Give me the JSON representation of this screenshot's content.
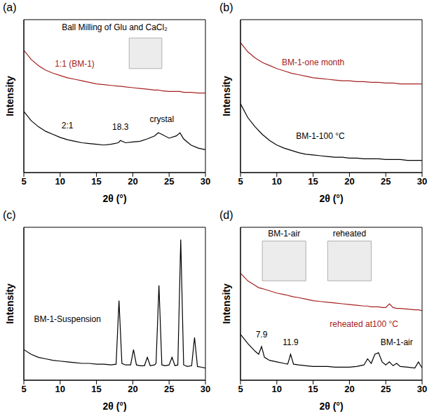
{
  "chart_data": [
    {
      "type": "line",
      "title": "(a)",
      "x_label": "2θ (°)",
      "y_label": "Intensity",
      "xlim": [
        5,
        30
      ],
      "xticks": [
        5,
        10,
        15,
        20,
        25,
        30
      ],
      "ylim": [
        0,
        100
      ],
      "tick_labels": "x",
      "x": [
        5,
        6,
        7,
        8,
        9,
        10,
        11,
        12,
        13,
        14,
        15,
        16,
        17,
        18,
        18.3,
        19,
        20,
        21,
        22,
        23,
        23.5,
        24,
        25,
        26,
        26.5,
        27,
        28,
        29,
        30
      ],
      "series": [
        {
          "name": "1:1 (BM-1)",
          "color": "#a52020",
          "label_pos": [
            12,
            71
          ],
          "values": [
            80,
            74,
            70,
            67,
            65,
            63.5,
            62,
            61,
            60,
            59,
            58,
            57.5,
            57,
            56.5,
            56.5,
            56,
            55.5,
            55,
            54.5,
            54,
            54,
            53.5,
            53,
            53,
            53,
            52.5,
            52.5,
            52,
            52
          ]
        },
        {
          "name": "2:1",
          "color": "#000000",
          "label_pos": [
            11,
            31
          ],
          "values": [
            40,
            34,
            30,
            27,
            25,
            23,
            21.5,
            20.5,
            19.5,
            19,
            18.5,
            18,
            18.5,
            19.5,
            21,
            19.5,
            20,
            20.5,
            22,
            24,
            26,
            25,
            22.5,
            24,
            26,
            22,
            18,
            16,
            15
          ]
        }
      ],
      "annotations": [
        {
          "text": "Ball Milling of Glu and CaCl₂",
          "x": 17.5,
          "y": 95
        },
        {
          "text": "18.3",
          "x": 18.3,
          "y": 30
        },
        {
          "text": "crystal",
          "x": 24,
          "y": 35
        }
      ]
    },
    {
      "type": "line",
      "title": "(b)",
      "x_label": "2θ (°)",
      "y_label": "Intensity",
      "xlim": [
        5,
        30
      ],
      "xticks": [
        5,
        10,
        15,
        20,
        25,
        30
      ],
      "ylim": [
        0,
        100
      ],
      "tick_labels": "x",
      "x": [
        5,
        6,
        7,
        8,
        9,
        10,
        11,
        12,
        13,
        14,
        15,
        16,
        17,
        18,
        19,
        20,
        21,
        22,
        23,
        24,
        25,
        26,
        27,
        28,
        29,
        30
      ],
      "series": [
        {
          "name": "BM-1-one month",
          "color": "#a52020",
          "label_pos": [
            15,
            72
          ],
          "values": [
            85,
            79,
            75,
            72,
            70,
            68,
            66.5,
            65,
            64,
            63,
            62,
            61.5,
            61,
            60.5,
            60,
            60,
            59.5,
            59.5,
            59,
            59,
            58.5,
            58.5,
            58,
            58,
            58,
            58
          ]
        },
        {
          "name": "BM-1-100 °C",
          "color": "#000000",
          "label_pos": [
            16,
            24
          ],
          "values": [
            45,
            36,
            30,
            25,
            21,
            18,
            16,
            14.5,
            13,
            12,
            11.5,
            11,
            10.5,
            10,
            10,
            9.5,
            9.5,
            9,
            9,
            9,
            8.5,
            8.5,
            8.5,
            8,
            8,
            8
          ]
        }
      ],
      "annotations": []
    },
    {
      "type": "line",
      "title": "(c)",
      "x_label": "2θ (°)",
      "y_label": "Intensity",
      "xlim": [
        5,
        30
      ],
      "xticks": [
        5,
        10,
        15,
        20,
        25,
        30
      ],
      "ylim": [
        0,
        100
      ],
      "tick_labels": "x",
      "x": [
        5,
        6,
        7,
        8,
        9,
        10,
        11,
        12,
        13,
        14,
        15,
        16,
        17,
        17.7,
        18.1,
        18.5,
        19,
        19.7,
        20.1,
        20.5,
        21,
        21.6,
        22,
        22.4,
        23,
        23.2,
        23.6,
        24,
        24.5,
        25,
        25.4,
        25.8,
        26.2,
        26.6,
        27,
        27.5,
        28.1,
        28.5,
        28.9,
        29.5,
        30
      ],
      "series": [
        {
          "name": "BM-1-Suspension",
          "color": "#000000",
          "label_pos": [
            11,
            40
          ],
          "values": [
            20,
            17,
            15,
            14,
            13,
            12.5,
            12,
            11.5,
            11,
            11,
            10.5,
            10.5,
            10,
            10.5,
            52,
            11,
            10,
            10,
            20,
            10,
            9.5,
            9.5,
            15,
            9.5,
            10,
            11,
            62,
            10,
            9.5,
            10,
            15,
            9.5,
            10,
            92,
            10,
            9,
            9.5,
            28,
            9,
            8.5,
            8
          ]
        }
      ],
      "annotations": []
    },
    {
      "type": "line",
      "title": "(d)",
      "x_label": "2θ (°)",
      "y_label": "Intensity",
      "xlim": [
        5,
        30
      ],
      "xticks": [
        5,
        10,
        15,
        20,
        25,
        30
      ],
      "ylim": [
        0,
        100
      ],
      "tick_labels": "x",
      "x": [
        5,
        6,
        7,
        7.5,
        7.9,
        8.3,
        9,
        10,
        11,
        11.5,
        11.9,
        12.3,
        13,
        14,
        15,
        16,
        17,
        18,
        19,
        20,
        21,
        22,
        22.5,
        23,
        23.5,
        24,
        24.5,
        25,
        25.5,
        26,
        26.5,
        27,
        28,
        29,
        29.5,
        30
      ],
      "series": [
        {
          "name": "reheated at100 °C",
          "color": "#a52020",
          "label_pos": [
            22,
            37
          ],
          "values": [
            70,
            65,
            62,
            60.5,
            60,
            59.5,
            58.5,
            57,
            56,
            55.5,
            55,
            54.5,
            54,
            53,
            52,
            51.5,
            51,
            50.5,
            50,
            49.5,
            49,
            48.5,
            48.5,
            48,
            48,
            48,
            47.5,
            47.5,
            50,
            47.5,
            47,
            47,
            46.5,
            46,
            46,
            45.5
          ]
        },
        {
          "name": "BM-1-air",
          "color": "#000000",
          "label_pos": [
            26.5,
            25
          ],
          "values": [
            30,
            24,
            19,
            17,
            22,
            15,
            13,
            12,
            11,
            10.5,
            17,
            10.5,
            10,
            9.5,
            9,
            9,
            9,
            8.5,
            8.5,
            8.5,
            9,
            10,
            14,
            11,
            17,
            18,
            12,
            10,
            12,
            9.5,
            11,
            9,
            8.5,
            8,
            12,
            8
          ]
        }
      ],
      "annotations": [
        {
          "text": "BM-1-air",
          "x": 11,
          "y": 96
        },
        {
          "text": "reheated",
          "x": 20,
          "y": 96
        },
        {
          "text": "7.9",
          "x": 7.9,
          "y": 30
        },
        {
          "text": "11.9",
          "x": 11.9,
          "y": 25
        }
      ]
    }
  ]
}
